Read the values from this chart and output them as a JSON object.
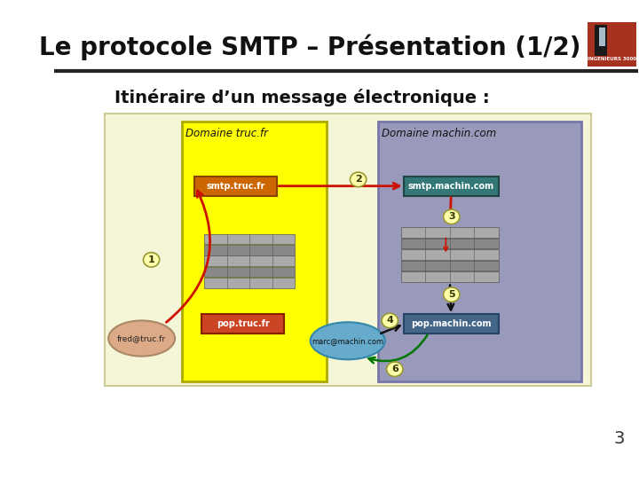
{
  "title": "Le protocole SMTP – Présentation (1/2)",
  "subtitle": "Itinéraire d’un message électronique :",
  "slide_bg": "#ffffff",
  "logo_bg": "#a83220",
  "diagram_bg": "#f5f5d8",
  "domain_truc_bg": "#ffff00",
  "domain_truc_border": "#aaaa00",
  "domain_machin_bg": "#9999bb",
  "domain_machin_border": "#7777aa",
  "smtp_truc_color": "#cc6600",
  "pop_truc_color": "#cc4422",
  "smtp_machin_color": "#337777",
  "pop_machin_color": "#446688",
  "server_color_dark": "#777777",
  "server_color_light": "#999999",
  "fred_color": "#ddaa88",
  "marc_color": "#66aacc",
  "num_circle_color": "#ffffaa",
  "num_circle_edge": "#999933",
  "arrow_red": "#cc1100",
  "arrow_dark": "#111111",
  "arrow_green": "#007700",
  "header_line_color": "#222222",
  "page_number": "3",
  "title_fontsize": 20,
  "subtitle_fontsize": 14
}
